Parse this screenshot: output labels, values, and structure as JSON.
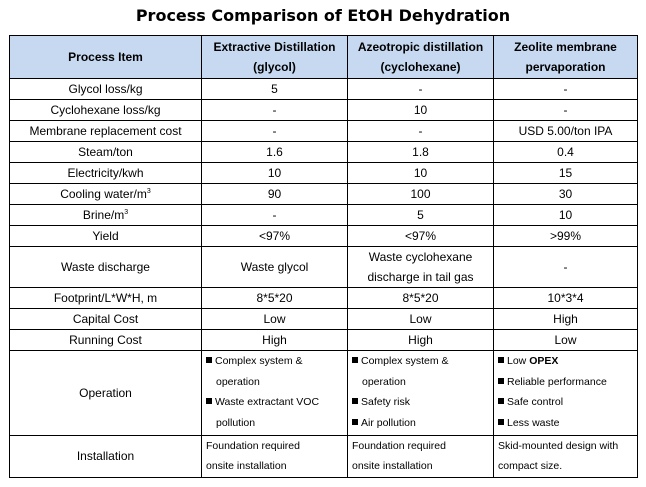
{
  "title": "Process Comparison of EtOH Dehydration",
  "header": {
    "item": "Process Item",
    "col1_line1": "Extractive Distillation",
    "col1_line2": "(glycol)",
    "col2_line1": "Azeotropic distillation",
    "col2_line2": "(cyclohexane)",
    "col3_line1": "Zeolite membrane",
    "col3_line2": "pervaporation"
  },
  "rows": {
    "glycol": {
      "label": "Glycol loss/kg",
      "c1": "5",
      "c2": "-",
      "c3": "-"
    },
    "cyclohexane": {
      "label": "Cyclohexane loss/kg",
      "c1": "-",
      "c2": "10",
      "c3": "-"
    },
    "membrane": {
      "label": "Membrane replacement cost",
      "c1": "-",
      "c2": "-",
      "c3": "USD 5.00/ton IPA"
    },
    "steam": {
      "label": "Steam/ton",
      "c1": "1.6",
      "c2": "1.8",
      "c3": "0.4"
    },
    "electricity": {
      "label": "Electricity/kwh",
      "c1": "10",
      "c2": "10",
      "c3": "15"
    },
    "cooling": {
      "label": "Cooling water/m",
      "sup": "3",
      "c1": "90",
      "c2": "100",
      "c3": "30"
    },
    "brine": {
      "label": "Brine/m",
      "sup": "3",
      "c1": "-",
      "c2": "5",
      "c3": "10"
    },
    "yield": {
      "label": "Yield",
      "c1": "<97%",
      "c2": "<97%",
      "c3": ">99%"
    },
    "waste": {
      "label": "Waste discharge",
      "c1": "Waste glycol",
      "c2_line1": "Waste cyclohexane",
      "c2_line2": "discharge in tail gas",
      "c3": "-"
    },
    "footprint": {
      "label": "Footprint/L*W*H, m",
      "c1": "8*5*20",
      "c2": "8*5*20",
      "c3": "10*3*4"
    },
    "capital": {
      "label": "Capital Cost",
      "c1": "Low",
      "c2": "Low",
      "c3": "High"
    },
    "running": {
      "label": "Running Cost",
      "c1": "High",
      "c2": "High",
      "c3": "Low"
    },
    "operation": {
      "label": "Operation",
      "c1": [
        {
          "line1": "Complex system &",
          "line2": "operation"
        },
        {
          "line1": "Waste extractant VOC",
          "line2": "pollution"
        }
      ],
      "c2": [
        {
          "line1": "Complex system &",
          "line2": "operation"
        },
        {
          "line1": "Safety risk"
        },
        {
          "line1": "Air pollution"
        }
      ],
      "c3_low_prefix": "Low ",
      "c3_low_bold": "OPEX",
      "c3": [
        "Reliable performance",
        "Safe control",
        "Less waste"
      ]
    },
    "installation": {
      "label": "Installation",
      "c1_line1": "Foundation required",
      "c1_line2": "onsite installation",
      "c2_line1": "Foundation required",
      "c2_line2": "onsite installation",
      "c3_line1": "Skid-mounted design with",
      "c3_line2": "compact size."
    }
  }
}
